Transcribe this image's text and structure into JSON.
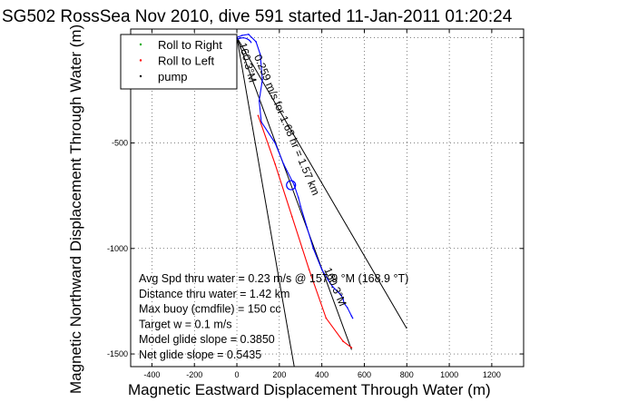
{
  "chart_data": {
    "type": "line",
    "title": "SG502 RossSea Nov 2010, dive 591 started 11-Jan-2011 01:20:24",
    "xlabel": "Magnetic Eastward Displacement Through Water (m)",
    "ylabel": "Magnetic Northward Displacement Through Water (m)",
    "xlim": [
      -500,
      1350
    ],
    "ylim": [
      -1560,
      40
    ],
    "xticks": [
      -400,
      -200,
      0,
      200,
      400,
      600,
      800,
      1000,
      1200
    ],
    "yticks": [
      0,
      -500,
      -1000,
      -1500
    ],
    "xtick_labels": [
      "-400",
      "-200",
      "0",
      "200",
      "400",
      "600",
      "800",
      "1000",
      "1200"
    ],
    "ytick_labels": [
      "0",
      "-500",
      "-1000",
      "-1500"
    ],
    "grid": "dotted",
    "legend": {
      "placement": "top-left",
      "entries": [
        {
          "label": "Roll to Right",
          "color": "#00aa00"
        },
        {
          "label": "Roll to Left",
          "color": "#ff0000"
        },
        {
          "label": "pump",
          "color": "#000000"
        }
      ]
    },
    "series": [
      {
        "color": "#0000ff",
        "x": [
          0,
          25,
          55,
          90,
          110,
          120,
          105,
          115,
          180,
          220,
          270,
          290,
          300,
          330,
          360,
          400,
          430,
          450,
          470,
          490,
          500,
          505,
          520,
          540,
          545
        ],
        "y": [
          0,
          10,
          15,
          -20,
          -80,
          -200,
          -300,
          -400,
          -500,
          -600,
          -700,
          -760,
          -800,
          -900,
          -1000,
          -1100,
          -1150,
          -1180,
          -1200,
          -1220,
          -1240,
          -1260,
          -1280,
          -1320,
          -1330
        ]
      },
      {
        "color": "#ff0000",
        "x": [
          100,
          180,
          260,
          340,
          420,
          500,
          540
        ],
        "y": [
          -370,
          -600,
          -850,
          -1100,
          -1330,
          -1440,
          -1470
        ]
      }
    ],
    "reference_lines": [
      {
        "x": [
          0,
          800
        ],
        "y": [
          0,
          -1380
        ]
      },
      {
        "x": [
          0,
          270
        ],
        "y": [
          0,
          -1560
        ]
      },
      {
        "x": [
          0,
          540
        ],
        "y": [
          0,
          -1480
        ]
      }
    ],
    "markers": [
      {
        "type": "circle",
        "x": 255,
        "y": -700
      }
    ],
    "annotations": [
      {
        "text": "160.3°M",
        "x": 10,
        "y": -30,
        "rotation_deg": -75
      },
      {
        "text": "0.259 m/s for 1.68 hr = 1.57 km",
        "x": 80,
        "y": -90,
        "rotation_deg": -67
      },
      {
        "text": "160.3°M",
        "x": 410,
        "y": -1100,
        "rotation_deg": -67
      }
    ],
    "stats": [
      "Avg Spd thru water =  0.23 m/s @ 157.9    °M (168.9 °T)",
      "Distance thru water =  1.42 km",
      "Max buoy (cmdfile) = 150 cc",
      "Target w = 0.1 m/s",
      "Model glide slope = 0.3850",
      "Net glide slope = 0.5435"
    ]
  }
}
